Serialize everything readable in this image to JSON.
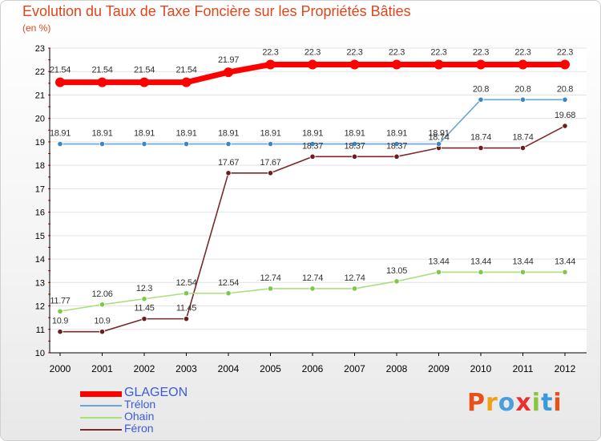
{
  "header": {
    "title": "Evolution du Taux de Taxe Foncière sur les Propriétés Bâties",
    "unit": "(en %)"
  },
  "brand": {
    "letters": [
      "P",
      "r",
      "o",
      "x",
      "i",
      "t",
      "i"
    ],
    "colors": [
      "#e8501b",
      "#f0a015",
      "#4aa0dc",
      "#e83030",
      "#8ac43a",
      "#3a9ad8",
      "#e8501b"
    ]
  },
  "colors": {
    "title": "#e0451b",
    "axis": "#000000",
    "tick_marks": "#e00000",
    "legend_label": "#3a5cd8"
  },
  "chart_data": {
    "type": "line",
    "title": "Evolution du Taux de Taxe Foncière sur les Propriétés Bâties",
    "ylabel": "(en %)",
    "xlabel": "",
    "x": [
      "2000",
      "2001",
      "2002",
      "2003",
      "2004",
      "2005",
      "2006",
      "2007",
      "2008",
      "2009",
      "2010",
      "2011",
      "2012"
    ],
    "yticks": [
      10,
      11,
      12,
      13,
      14,
      15,
      16,
      17,
      18,
      19,
      20,
      21,
      22,
      23
    ],
    "ylim": [
      10,
      23
    ],
    "grid": "horizontal",
    "legend": "bottom-left",
    "series": [
      {
        "name": "GLAGEON",
        "color": "#ff0000",
        "values": [
          21.54,
          21.54,
          21.54,
          21.54,
          21.97,
          22.3,
          22.3,
          22.3,
          22.3,
          22.3,
          22.3,
          22.3,
          22.3
        ],
        "labels": [
          "21.54",
          "21.54",
          "21.54",
          "21.54",
          "21.97",
          "22.3",
          "22.3",
          "22.3",
          "22.3",
          "22.3",
          "22.3",
          "22.3",
          "22.3"
        ]
      },
      {
        "name": "Trélon",
        "color": "#6aa4d8",
        "marker": "#3a86c8",
        "values": [
          18.91,
          18.91,
          18.91,
          18.91,
          18.91,
          18.91,
          18.91,
          18.91,
          18.91,
          18.91,
          20.8,
          20.8,
          20.8
        ],
        "labels": [
          "18.91",
          "18.91",
          "18.91",
          "18.91",
          "18.91",
          "18.91",
          "18.91",
          "18.91",
          "18.91",
          "18.91",
          "20.8",
          "20.8",
          "20.8"
        ]
      },
      {
        "name": "Ohain",
        "color": "#a8e07a",
        "marker": "#7cc84a",
        "values": [
          11.77,
          12.06,
          12.3,
          12.54,
          12.54,
          12.74,
          12.74,
          12.74,
          13.05,
          13.44,
          13.44,
          13.44,
          13.44
        ],
        "labels": [
          "11.77",
          "12.06",
          "12.3",
          "12.54",
          "12.54",
          "12.74",
          "12.74",
          "12.74",
          "13.05",
          "13.44",
          "13.44",
          "13.44",
          "13.44"
        ]
      },
      {
        "name": "Féron",
        "color": "#7a2a2a",
        "marker": "#6a1e1e",
        "values": [
          10.9,
          10.9,
          11.45,
          11.45,
          17.67,
          17.67,
          18.37,
          18.37,
          18.37,
          18.74,
          18.74,
          18.74,
          19.68
        ],
        "labels": [
          "10.9",
          "10.9",
          "11.45",
          "11.45",
          "17.67",
          "17.67",
          "18.37",
          "18.37",
          "18.37",
          "18.74",
          "18.74",
          "18.74",
          "19.68"
        ]
      }
    ]
  }
}
